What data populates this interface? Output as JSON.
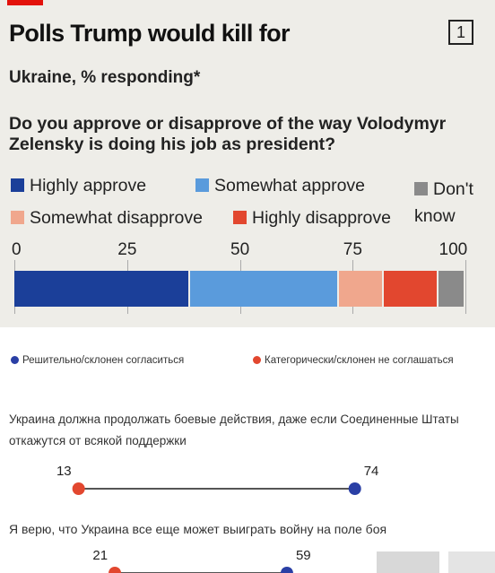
{
  "header": {
    "title": "Polls Trump would kill for",
    "badge": "1",
    "subtitle": "Ukraine, % responding*",
    "question": "Do you approve or disapprove of the way Volodymyr Zelensky is doing his job as president?"
  },
  "legend": [
    {
      "label": "Highly approve",
      "color": "#1b3f99"
    },
    {
      "label": "Somewhat approve",
      "color": "#5a9bdc"
    },
    {
      "label": "Don't know",
      "color": "#8a8a8a"
    },
    {
      "label": "Somewhat disapprove",
      "color": "#f0a78d"
    },
    {
      "label": "Highly disapprove",
      "color": "#e2472f"
    }
  ],
  "chart_data": [
    {
      "type": "bar",
      "title": "Polls Trump would kill for",
      "subtitle": "Ukraine, % responding*",
      "xlim": [
        0,
        100
      ],
      "xticks": [
        "0",
        "25",
        "50",
        "75",
        "100"
      ],
      "stacked": true,
      "series": [
        {
          "name": "Highly approve",
          "value": 39
        },
        {
          "name": "Somewhat approve",
          "value": 33
        },
        {
          "name": "Somewhat disapprove",
          "value": 10
        },
        {
          "name": "Highly disapprove",
          "value": 12
        },
        {
          "name": "Don't know",
          "value": 6
        }
      ]
    },
    {
      "type": "scatter",
      "legend": [
        {
          "label": "Решительно/склонен согласиться",
          "color": "#2a3fa5"
        },
        {
          "label": "Категорически/склонен не соглашаться",
          "color": "#e2472f"
        }
      ],
      "items": [
        {
          "question": "Украина должна продолжать боевые действия, даже если Соединенные Штаты откажутся от всякой поддержки",
          "disagree": 13,
          "agree": 74
        },
        {
          "question": "Я верю, что Украина все еще может выиграть войну на поле боя",
          "disagree": 21,
          "agree": 59
        }
      ]
    }
  ]
}
